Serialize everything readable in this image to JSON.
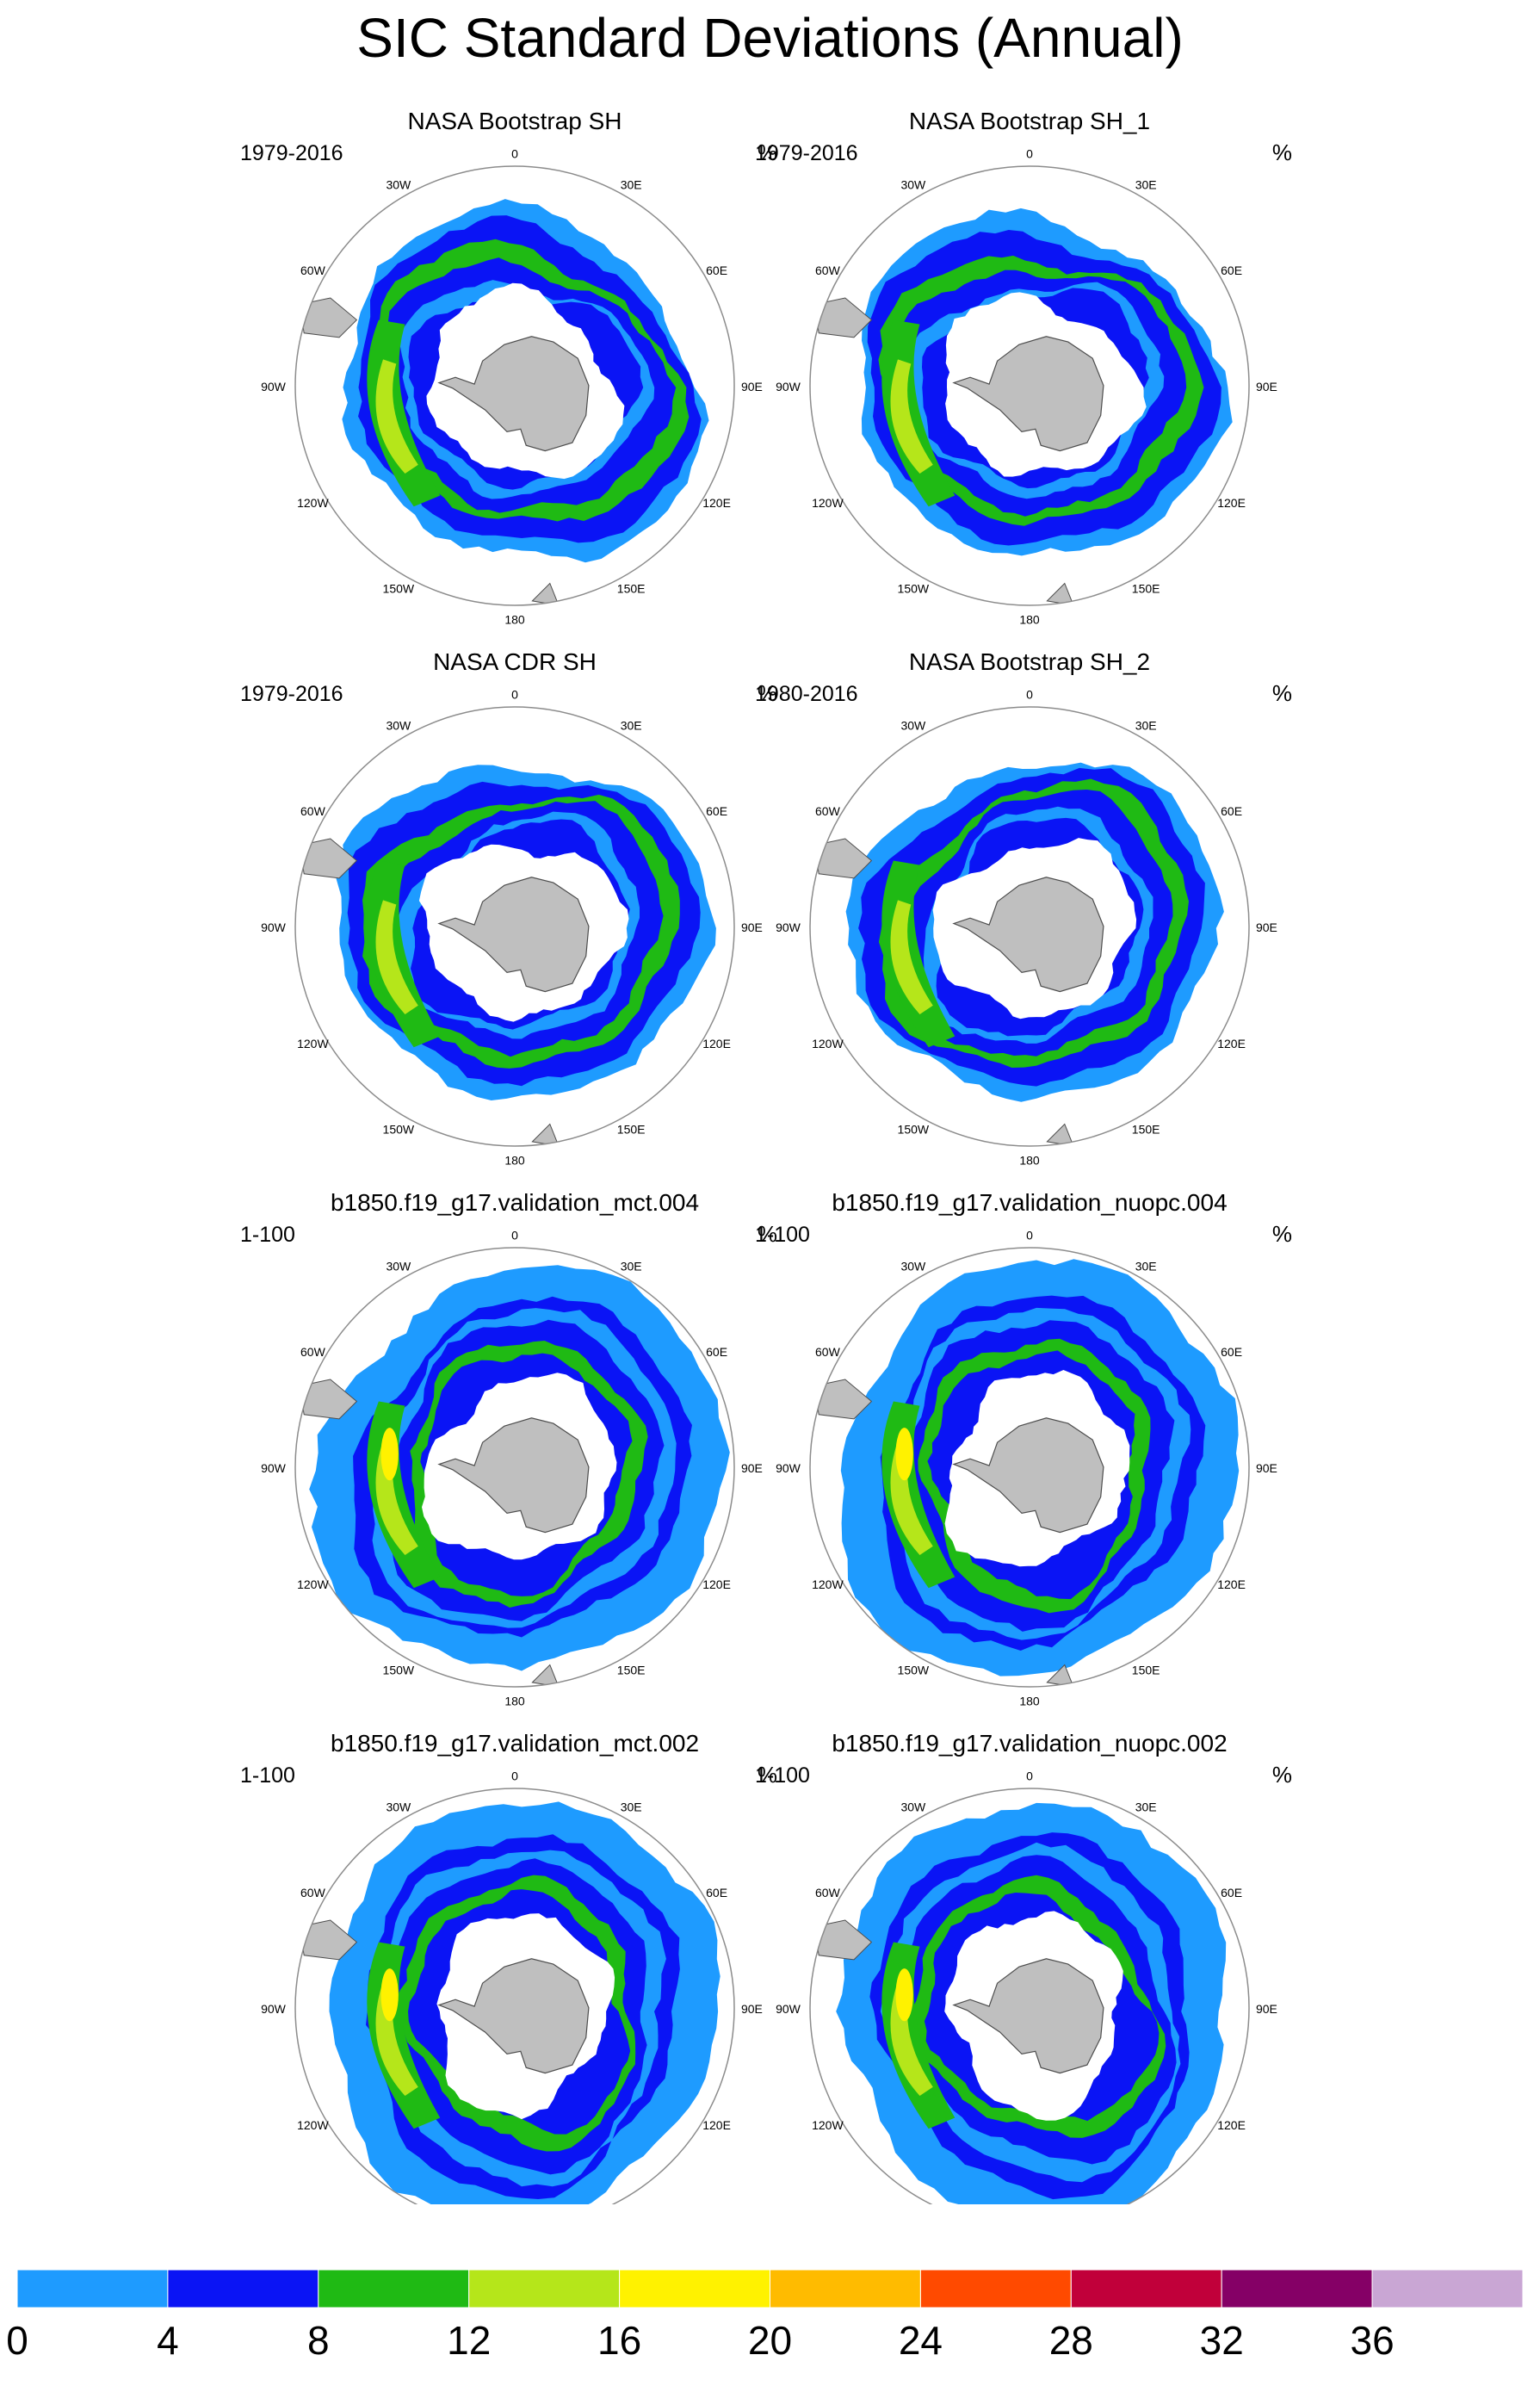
{
  "title": "SIC Standard Deviations (Annual)",
  "units": "%",
  "longitude_labels": [
    "0",
    "30E",
    "60E",
    "90E",
    "120E",
    "150E",
    "180",
    "150W",
    "120W",
    "90W",
    "60W",
    "30W"
  ],
  "panels": [
    {
      "name": "NASA Bootstrap SH",
      "period": "1979-2016",
      "source": "observation"
    },
    {
      "name": "NASA Bootstrap SH_1",
      "period": "1979-2016",
      "source": "observation"
    },
    {
      "name": "NASA CDR SH",
      "period": "1979-2016",
      "source": "observation"
    },
    {
      "name": "NASA Bootstrap SH_2",
      "period": "1980-2016",
      "source": "observation"
    },
    {
      "name": "b1850.f19_g17.validation_mct.004",
      "period": "1-100",
      "source": "model"
    },
    {
      "name": "b1850.f19_g17.validation_nuopc.004",
      "period": "1-100",
      "source": "model"
    },
    {
      "name": "b1850.f19_g17.validation_mct.002",
      "period": "1-100",
      "source": "model"
    },
    {
      "name": "b1850.f19_g17.validation_nuopc.002",
      "period": "1-100",
      "source": "model"
    }
  ],
  "colorbar": {
    "tick_labels": [
      "0",
      "4",
      "8",
      "12",
      "16",
      "20",
      "24",
      "28",
      "32",
      "36"
    ],
    "colors": [
      "#1e9bff",
      "#0a14f5",
      "#1fba14",
      "#b5e61a",
      "#fff200",
      "#ffbb00",
      "#ff4a00",
      "#c1003a",
      "#850066",
      "#c9a6d4"
    ]
  },
  "colors": {
    "land": "#bfbfbf",
    "coast": "#4d4d4d",
    "circle": "#8c8c8c"
  }
}
